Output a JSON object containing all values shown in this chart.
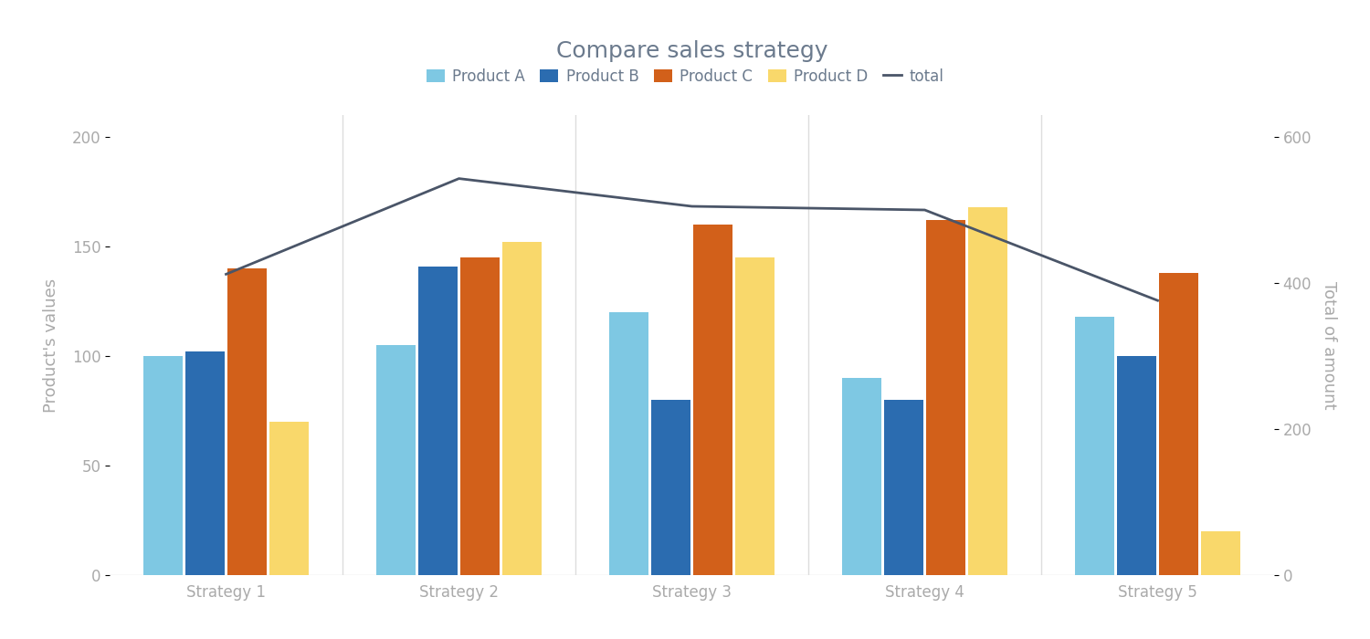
{
  "title": "Compare sales strategy",
  "categories": [
    "Strategy 1",
    "Strategy 2",
    "Strategy 3",
    "Strategy 4",
    "Strategy 5"
  ],
  "product_A": [
    100,
    105,
    120,
    90,
    118
  ],
  "product_B": [
    102,
    141,
    80,
    80,
    100
  ],
  "product_C": [
    140,
    145,
    160,
    162,
    138
  ],
  "product_D": [
    70,
    152,
    145,
    168,
    20
  ],
  "total": [
    412,
    543,
    505,
    500,
    376
  ],
  "colors": {
    "product_A": "#7EC8E3",
    "product_B": "#2b6cb0",
    "product_C": "#d2601a",
    "product_D": "#F9D86B",
    "total": "#4a5568"
  },
  "ylabel_left": "Product's values",
  "ylabel_right": "Total of amount",
  "ylim_left": [
    0,
    210
  ],
  "ylim_right": [
    0,
    630
  ],
  "yticks_left": [
    0,
    50,
    100,
    150,
    200
  ],
  "yticks_right": [
    0,
    200,
    400,
    600
  ],
  "background_color": "#ffffff",
  "grid_color": "#dddddd",
  "axis_color": "#aaaaaa",
  "title_fontsize": 18,
  "label_fontsize": 13,
  "tick_fontsize": 12,
  "legend_fontsize": 12,
  "bar_width": 0.17,
  "bar_gap": 0.01
}
